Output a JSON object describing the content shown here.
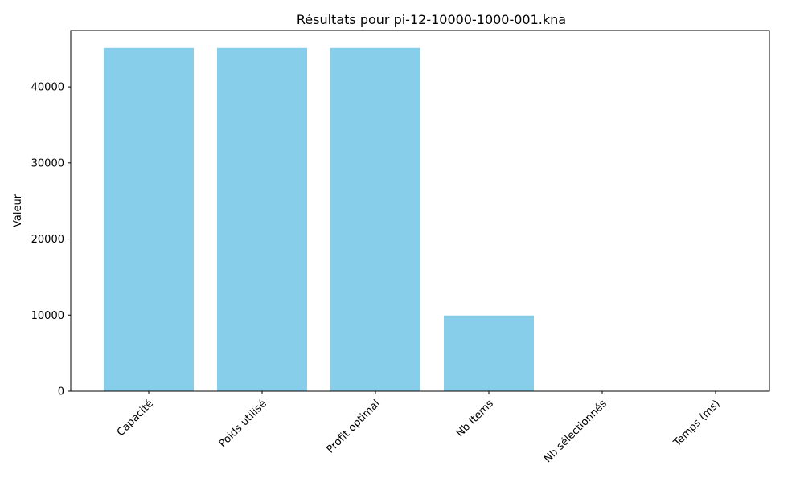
{
  "chart_data": {
    "type": "bar",
    "title": "Résultats pour pi-12-10000-1000-001.kna",
    "xlabel": "",
    "ylabel": "Valeur",
    "categories": [
      "Capacité",
      "Poids utilisé",
      "Profit optimal",
      "Nb Items",
      "Nb sélectionnés",
      "Temps (ms)"
    ],
    "values": [
      45100,
      45100,
      45100,
      9950,
      30,
      10
    ],
    "ylim": [
      0,
      47400
    ],
    "yticks": [
      0,
      10000,
      20000,
      30000,
      40000
    ],
    "ytick_labels": [
      "0",
      "10000",
      "20000",
      "30000",
      "40000"
    ],
    "bar_color": "#87ceeb",
    "grid": false,
    "legend": "none"
  }
}
